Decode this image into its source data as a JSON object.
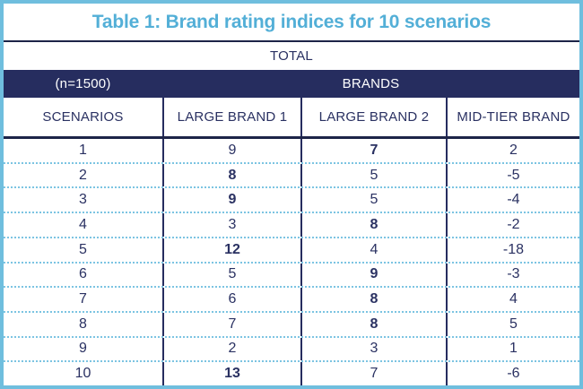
{
  "title": "Table 1: Brand rating indices for 10 scenarios",
  "total_label": "TOTAL",
  "sample_label": "(n=1500)",
  "brands_label": "BRANDS",
  "columns": [
    "SCENARIOS",
    "LARGE BRAND 1",
    "LARGE BRAND 2",
    "MID-TIER BRAND"
  ],
  "rows": [
    {
      "scenario": "1",
      "values": [
        {
          "text": "9",
          "bold": false
        },
        {
          "text": "7",
          "bold": true
        },
        {
          "text": "2",
          "bold": false
        }
      ]
    },
    {
      "scenario": "2",
      "values": [
        {
          "text": "8",
          "bold": true
        },
        {
          "text": "5",
          "bold": false
        },
        {
          "text": "-5",
          "bold": false
        }
      ]
    },
    {
      "scenario": "3",
      "values": [
        {
          "text": "9",
          "bold": true
        },
        {
          "text": "5",
          "bold": false
        },
        {
          "text": "-4",
          "bold": false
        }
      ]
    },
    {
      "scenario": "4",
      "values": [
        {
          "text": "3",
          "bold": false
        },
        {
          "text": "8",
          "bold": true
        },
        {
          "text": "-2",
          "bold": false
        }
      ]
    },
    {
      "scenario": "5",
      "values": [
        {
          "text": "12",
          "bold": true
        },
        {
          "text": "4",
          "bold": false
        },
        {
          "text": "-18",
          "bold": false
        }
      ]
    },
    {
      "scenario": "6",
      "values": [
        {
          "text": "5",
          "bold": false
        },
        {
          "text": "9",
          "bold": true
        },
        {
          "text": "-3",
          "bold": false
        }
      ]
    },
    {
      "scenario": "7",
      "values": [
        {
          "text": "6",
          "bold": false
        },
        {
          "text": "8",
          "bold": true
        },
        {
          "text": "4",
          "bold": false
        }
      ]
    },
    {
      "scenario": "8",
      "values": [
        {
          "text": "7",
          "bold": false
        },
        {
          "text": "8",
          "bold": true
        },
        {
          "text": "5",
          "bold": false
        }
      ]
    },
    {
      "scenario": "9",
      "values": [
        {
          "text": "2",
          "bold": false
        },
        {
          "text": "3",
          "bold": false
        },
        {
          "text": "1",
          "bold": false
        }
      ]
    },
    {
      "scenario": "10",
      "values": [
        {
          "text": "13",
          "bold": true
        },
        {
          "text": "7",
          "bold": false
        },
        {
          "text": "-6",
          "bold": false
        }
      ]
    }
  ],
  "colors": {
    "accent_lightblue": "#6fbede",
    "title_blue": "#53afd7",
    "dotted_line_blue": "#7cc4e2",
    "navy_band": "#262d5f",
    "navy_text": "#2a3162",
    "dark_line": "#1d2448"
  },
  "chart_data": {
    "type": "table",
    "title": "Table 1: Brand rating indices for 10 scenarios",
    "group_header": "TOTAL",
    "sample_size": "(n=1500)",
    "column_group_label": "BRANDS",
    "columns": [
      "SCENARIOS",
      "LARGE BRAND 1",
      "LARGE BRAND 2",
      "MID-TIER BRAND"
    ],
    "rows": [
      {
        "scenario": 1,
        "large_brand_1": 9,
        "large_brand_2": 7,
        "mid_tier_brand": 2,
        "bold_cell": "large_brand_2"
      },
      {
        "scenario": 2,
        "large_brand_1": 8,
        "large_brand_2": 5,
        "mid_tier_brand": -5,
        "bold_cell": "large_brand_1"
      },
      {
        "scenario": 3,
        "large_brand_1": 9,
        "large_brand_2": 5,
        "mid_tier_brand": -4,
        "bold_cell": "large_brand_1"
      },
      {
        "scenario": 4,
        "large_brand_1": 3,
        "large_brand_2": 8,
        "mid_tier_brand": -2,
        "bold_cell": "large_brand_2"
      },
      {
        "scenario": 5,
        "large_brand_1": 12,
        "large_brand_2": 4,
        "mid_tier_brand": -18,
        "bold_cell": "large_brand_1"
      },
      {
        "scenario": 6,
        "large_brand_1": 5,
        "large_brand_2": 9,
        "mid_tier_brand": -3,
        "bold_cell": "large_brand_2"
      },
      {
        "scenario": 7,
        "large_brand_1": 6,
        "large_brand_2": 8,
        "mid_tier_brand": 4,
        "bold_cell": "large_brand_2"
      },
      {
        "scenario": 8,
        "large_brand_1": 7,
        "large_brand_2": 8,
        "mid_tier_brand": 5,
        "bold_cell": "large_brand_2"
      },
      {
        "scenario": 9,
        "large_brand_1": 2,
        "large_brand_2": 3,
        "mid_tier_brand": 1,
        "bold_cell": null
      },
      {
        "scenario": 10,
        "large_brand_1": 13,
        "large_brand_2": 7,
        "mid_tier_brand": -6,
        "bold_cell": "large_brand_1"
      }
    ]
  }
}
